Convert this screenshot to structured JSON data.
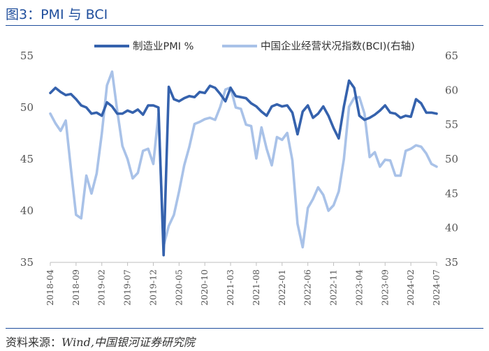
{
  "header": {
    "title": "图3：PMI 与 BCI"
  },
  "footer": {
    "source_label": "资料来源：",
    "source_text": "Wind,中国银河证券研究院"
  },
  "colors": {
    "pmi": "#3562ad",
    "bci": "#a9c2e8",
    "accent": "#1f4e9c"
  },
  "chart_data": {
    "type": "line",
    "title": "",
    "x": [
      "2018-04",
      "2018-05",
      "2018-06",
      "2018-07",
      "2018-08",
      "2018-09",
      "2018-10",
      "2018-11",
      "2018-12",
      "2019-01",
      "2019-02",
      "2019-03",
      "2019-04",
      "2019-05",
      "2019-06",
      "2019-07",
      "2019-08",
      "2019-09",
      "2019-10",
      "2019-11",
      "2019-12",
      "2020-01",
      "2020-02",
      "2020-03",
      "2020-04",
      "2020-05",
      "2020-06",
      "2020-07",
      "2020-08",
      "2020-09",
      "2020-10",
      "2020-11",
      "2020-12",
      "2021-01",
      "2021-02",
      "2021-03",
      "2021-04",
      "2021-05",
      "2021-06",
      "2021-07",
      "2021-08",
      "2021-09",
      "2021-10",
      "2021-11",
      "2021-12",
      "2022-01",
      "2022-02",
      "2022-03",
      "2022-04",
      "2022-05",
      "2022-06",
      "2022-07",
      "2022-08",
      "2022-09",
      "2022-10",
      "2022-11",
      "2022-12",
      "2023-01",
      "2023-02",
      "2023-03",
      "2023-04",
      "2023-05",
      "2023-06",
      "2023-07",
      "2023-08",
      "2023-09",
      "2023-10",
      "2023-11",
      "2023-12",
      "2024-01",
      "2024-02",
      "2024-03",
      "2024-04",
      "2024-05",
      "2024-06",
      "2024-07"
    ],
    "xticks": [
      "2018-04",
      "2018-09",
      "2019-02",
      "2019-07",
      "2019-12",
      "2020-05",
      "2020-10",
      "2021-03",
      "2021-08",
      "2022-01",
      "2022-06",
      "2022-11",
      "2023-04",
      "2023-09",
      "2024-02",
      "2024-07"
    ],
    "y_left": {
      "lim": [
        35,
        55
      ],
      "ticks": [
        "35",
        "40",
        "45",
        "50",
        "55"
      ]
    },
    "y_right": {
      "lim": [
        35,
        65
      ],
      "ticks": [
        "35",
        "40",
        "45",
        "50",
        "55",
        "60",
        "65"
      ]
    },
    "series": [
      {
        "name": "制造业PMI %",
        "axis": "left",
        "values": [
          51.4,
          51.9,
          51.5,
          51.2,
          51.3,
          50.8,
          50.2,
          50.0,
          49.4,
          49.5,
          49.2,
          50.5,
          50.1,
          49.4,
          49.4,
          49.7,
          49.5,
          49.8,
          49.3,
          50.2,
          50.2,
          50.0,
          35.7,
          52.0,
          50.8,
          50.6,
          50.9,
          51.1,
          51.0,
          51.5,
          51.4,
          52.1,
          51.9,
          51.3,
          50.6,
          51.9,
          51.1,
          51.0,
          50.9,
          50.4,
          50.1,
          49.6,
          49.2,
          50.1,
          50.3,
          50.1,
          50.2,
          49.5,
          47.4,
          49.6,
          50.2,
          49.0,
          49.4,
          50.1,
          49.2,
          48.0,
          47.0,
          50.1,
          52.6,
          51.9,
          49.2,
          48.8,
          49.0,
          49.3,
          49.7,
          50.2,
          49.5,
          49.4,
          49.0,
          49.2,
          49.1,
          50.8,
          50.4,
          49.5,
          49.5,
          49.4
        ]
      },
      {
        "name": "中国企业经营状况指数(BCI)(右轴)",
        "axis": "right",
        "values": [
          56.6,
          55.2,
          54.1,
          55.6,
          48.6,
          41.9,
          41.4,
          47.6,
          45.0,
          47.9,
          53.7,
          60.7,
          62.7,
          57.0,
          51.9,
          50.0,
          47.2,
          48.0,
          51.2,
          51.5,
          49.3,
          56.6,
          37.4,
          40.3,
          41.9,
          45.3,
          49.1,
          51.8,
          55.1,
          55.4,
          55.8,
          56.0,
          55.7,
          57.6,
          60.1,
          60.4,
          57.5,
          57.3,
          55.0,
          54.8,
          50.1,
          54.6,
          51.5,
          49.1,
          53.2,
          52.8,
          53.8,
          49.8,
          40.6,
          37.2,
          42.9,
          44.2,
          45.9,
          44.8,
          42.5,
          43.3,
          45.3,
          50.0,
          57.6,
          58.9,
          59.0,
          56.6,
          50.3,
          51.0,
          48.9,
          49.9,
          49.8,
          47.6,
          47.6,
          51.2,
          51.5,
          52.0,
          51.8,
          50.8,
          49.3,
          48.9
        ]
      }
    ],
    "legend": "top"
  }
}
